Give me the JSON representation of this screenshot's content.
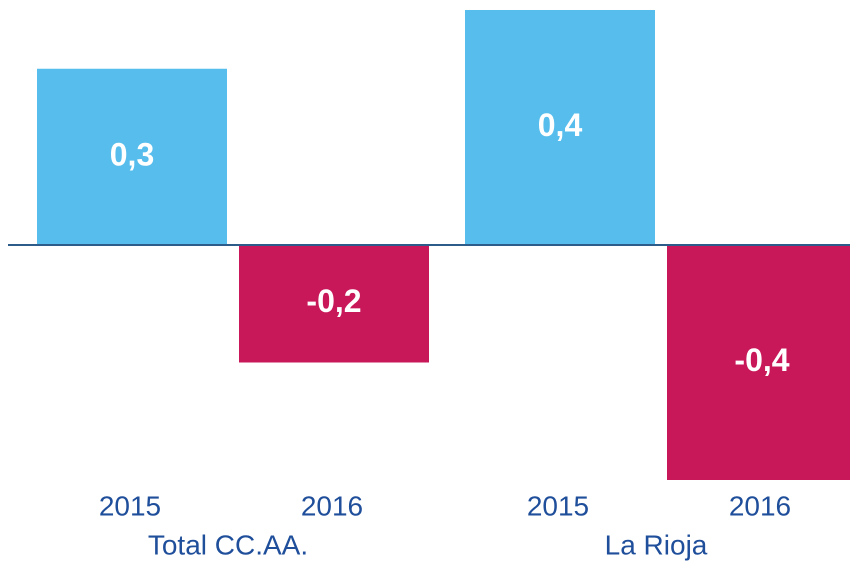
{
  "chart_data": {
    "type": "bar",
    "categories": [
      "Total CC.AA.",
      "La Rioja"
    ],
    "series": [
      {
        "name": "2015",
        "color": "#56bdec",
        "values": [
          0.3,
          0.4
        ],
        "value_labels": [
          "0,3",
          "0,4"
        ]
      },
      {
        "name": "2016",
        "color": "#c8185a",
        "values": [
          -0.2,
          -0.4
        ],
        "value_labels": [
          "-0,2",
          "-0,4"
        ]
      }
    ],
    "ylim": [
      -0.4,
      0.4
    ]
  }
}
